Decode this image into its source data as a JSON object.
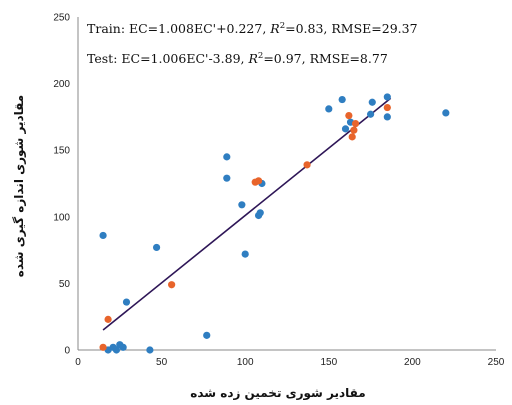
{
  "chart_data": {
    "type": "scatter",
    "xlabel": "مقادیر شوری تخمین زده شده",
    "ylabel": "مقادیر شوری اندازه گیری شده",
    "xlim": [
      0,
      250
    ],
    "ylim": [
      0,
      250
    ],
    "xticks": [
      0,
      50,
      100,
      150,
      200,
      250
    ],
    "yticks": [
      0,
      50,
      100,
      150,
      200,
      250
    ],
    "grid": false,
    "annotations": [
      {
        "prefix": "Train: EC=1.008EC'+0.227, ",
        "var": "R",
        "sup": "2",
        "suffix": "=0.83, RMSE=29.37"
      },
      {
        "prefix": "Test: EC=1.006EC'-3.89, ",
        "var": "R",
        "sup": "2",
        "suffix": "=0.97, RMSE=8.77"
      }
    ],
    "line": {
      "x": [
        15,
        187
      ],
      "y": [
        15,
        189
      ],
      "color": "#2e1657"
    },
    "series": [
      {
        "color": "#2f7ec1",
        "points": [
          [
            15,
            86
          ],
          [
            18,
            0
          ],
          [
            21,
            2
          ],
          [
            23,
            0
          ],
          [
            25,
            4
          ],
          [
            27,
            2
          ],
          [
            29,
            36
          ],
          [
            43,
            0
          ],
          [
            47,
            77
          ],
          [
            77,
            11
          ],
          [
            89,
            145
          ],
          [
            89,
            129
          ],
          [
            98,
            109
          ],
          [
            100,
            72
          ],
          [
            108,
            101
          ],
          [
            109,
            103
          ],
          [
            110,
            125
          ],
          [
            150,
            181
          ],
          [
            158,
            188
          ],
          [
            160,
            166
          ],
          [
            163,
            171
          ],
          [
            175,
            177
          ],
          [
            176,
            186
          ],
          [
            185,
            175
          ],
          [
            185,
            190
          ],
          [
            220,
            178
          ]
        ]
      },
      {
        "color": "#e8642b",
        "points": [
          [
            15,
            2
          ],
          [
            18,
            23
          ],
          [
            56,
            49
          ],
          [
            106,
            126
          ],
          [
            108,
            127
          ],
          [
            137,
            139
          ],
          [
            162,
            176
          ],
          [
            164,
            160
          ],
          [
            165,
            165
          ],
          [
            166,
            170
          ],
          [
            185,
            182
          ]
        ]
      }
    ]
  }
}
